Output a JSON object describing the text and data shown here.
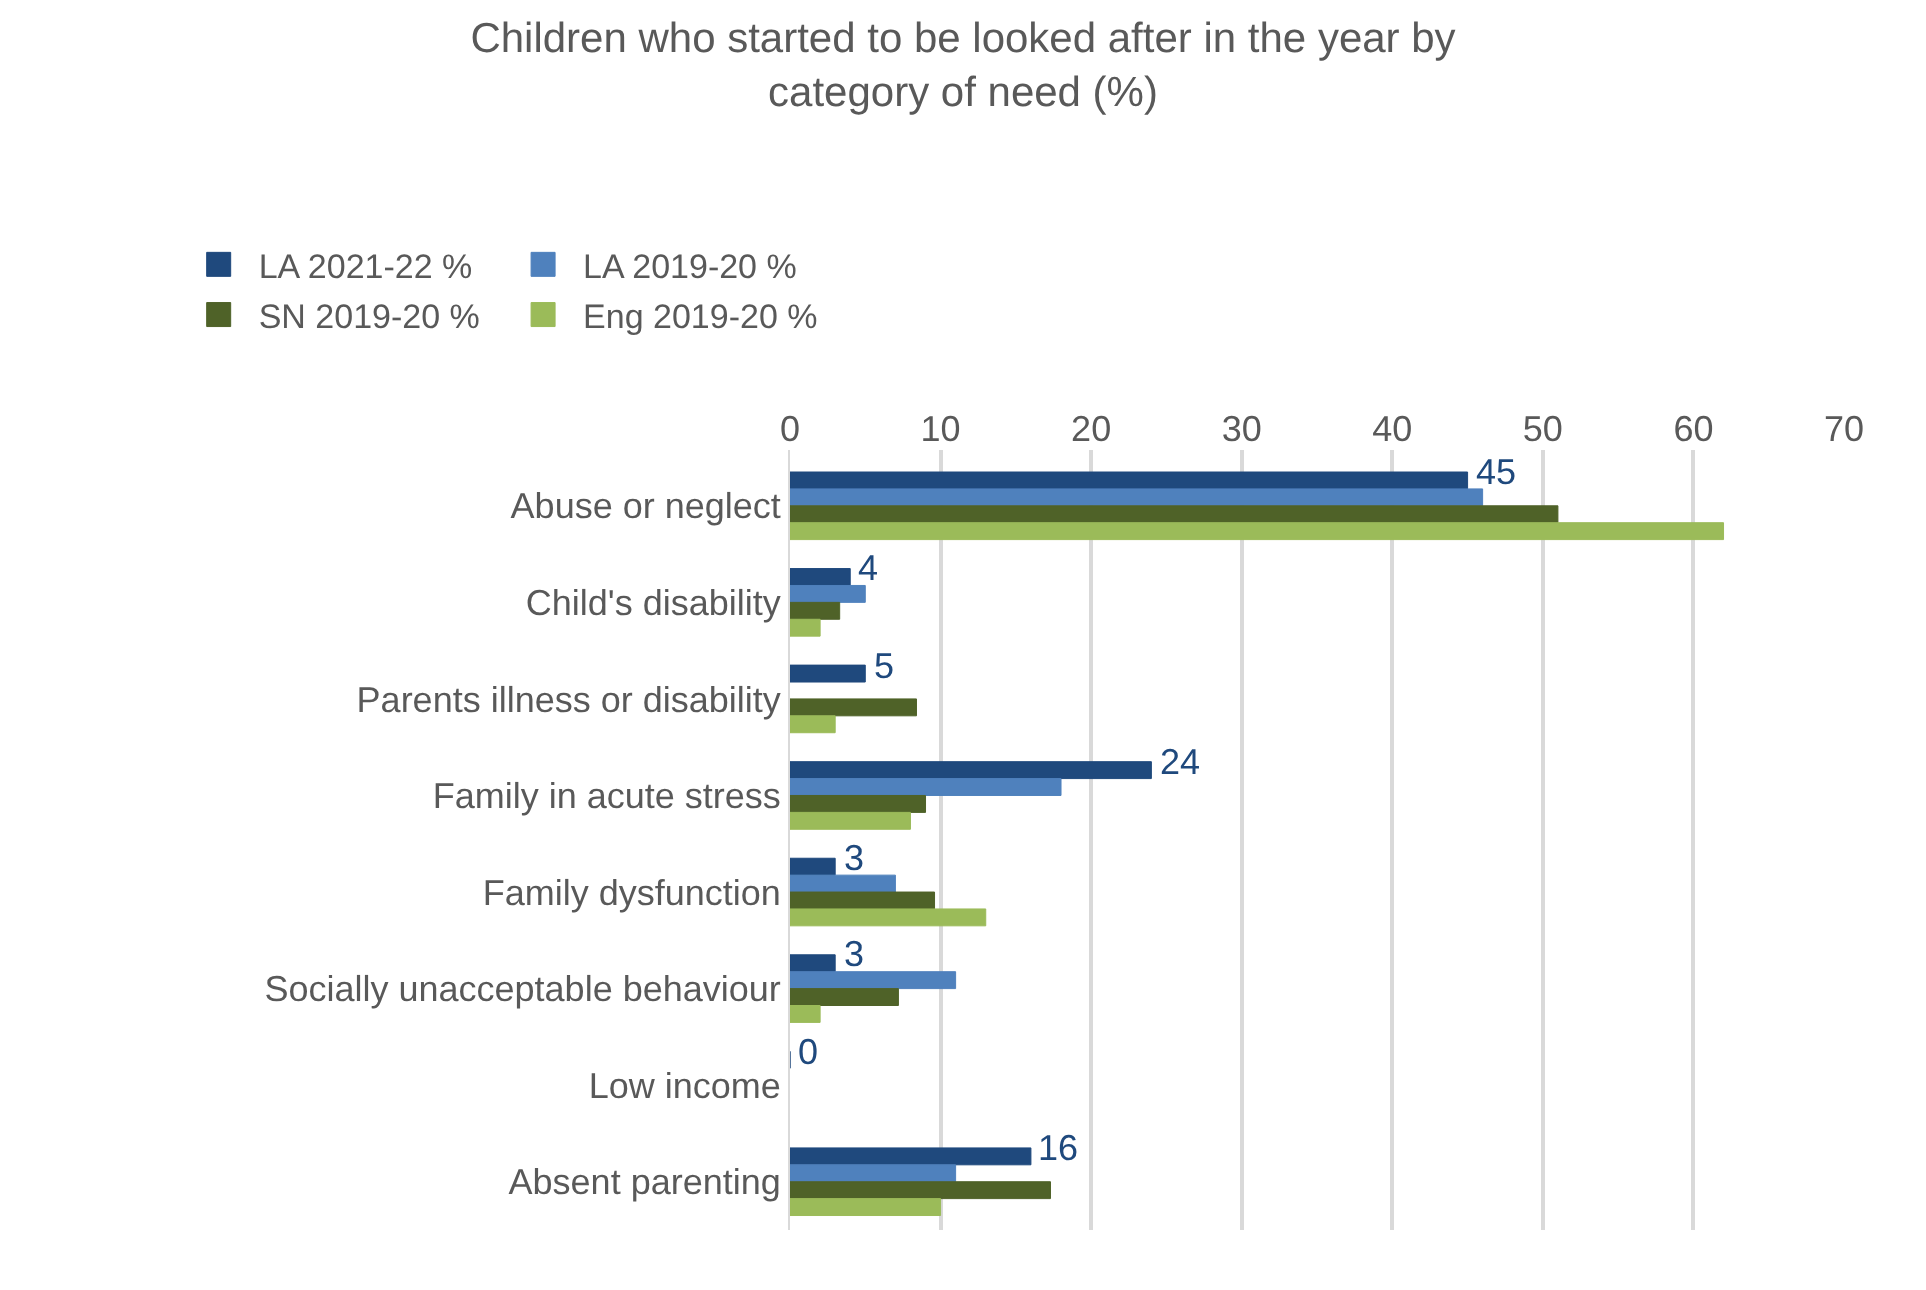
{
  "chart_data": {
    "type": "bar",
    "orientation": "horizontal",
    "title": "Children who started to be looked after in the year by category of need (%)",
    "categories": [
      "Abuse or neglect",
      "Child's disability",
      "Parents illness or disability",
      "Family in acute stress",
      "Family dysfunction",
      "Socially unacceptable behaviour",
      "Low income",
      "Absent parenting"
    ],
    "series": [
      {
        "name": "LA 2021-22 %",
        "color": "#1f497d",
        "values": [
          45,
          4,
          5,
          24,
          3,
          3,
          0,
          16
        ],
        "value_labels": [
          "45",
          "4",
          "5",
          "24",
          "3",
          "3",
          "0",
          "16"
        ]
      },
      {
        "name": "LA 2019-20 %",
        "color": "#4f81bd",
        "values": [
          46,
          5,
          null,
          18,
          7,
          11,
          null,
          11
        ]
      },
      {
        "name": "SN 2019-20 %",
        "color": "#4f6228",
        "values": [
          51,
          3.3,
          8.4,
          9,
          9.6,
          7.2,
          null,
          17.3
        ]
      },
      {
        "name": "Eng 2019-20 %",
        "color": "#9bbb59",
        "values": [
          62,
          2,
          3,
          8,
          13,
          2,
          null,
          10
        ]
      }
    ],
    "xlim": [
      0,
      70
    ],
    "xticks": [
      0,
      10,
      20,
      30,
      40,
      50,
      60,
      70
    ],
    "grid": "x",
    "legend": "top"
  }
}
